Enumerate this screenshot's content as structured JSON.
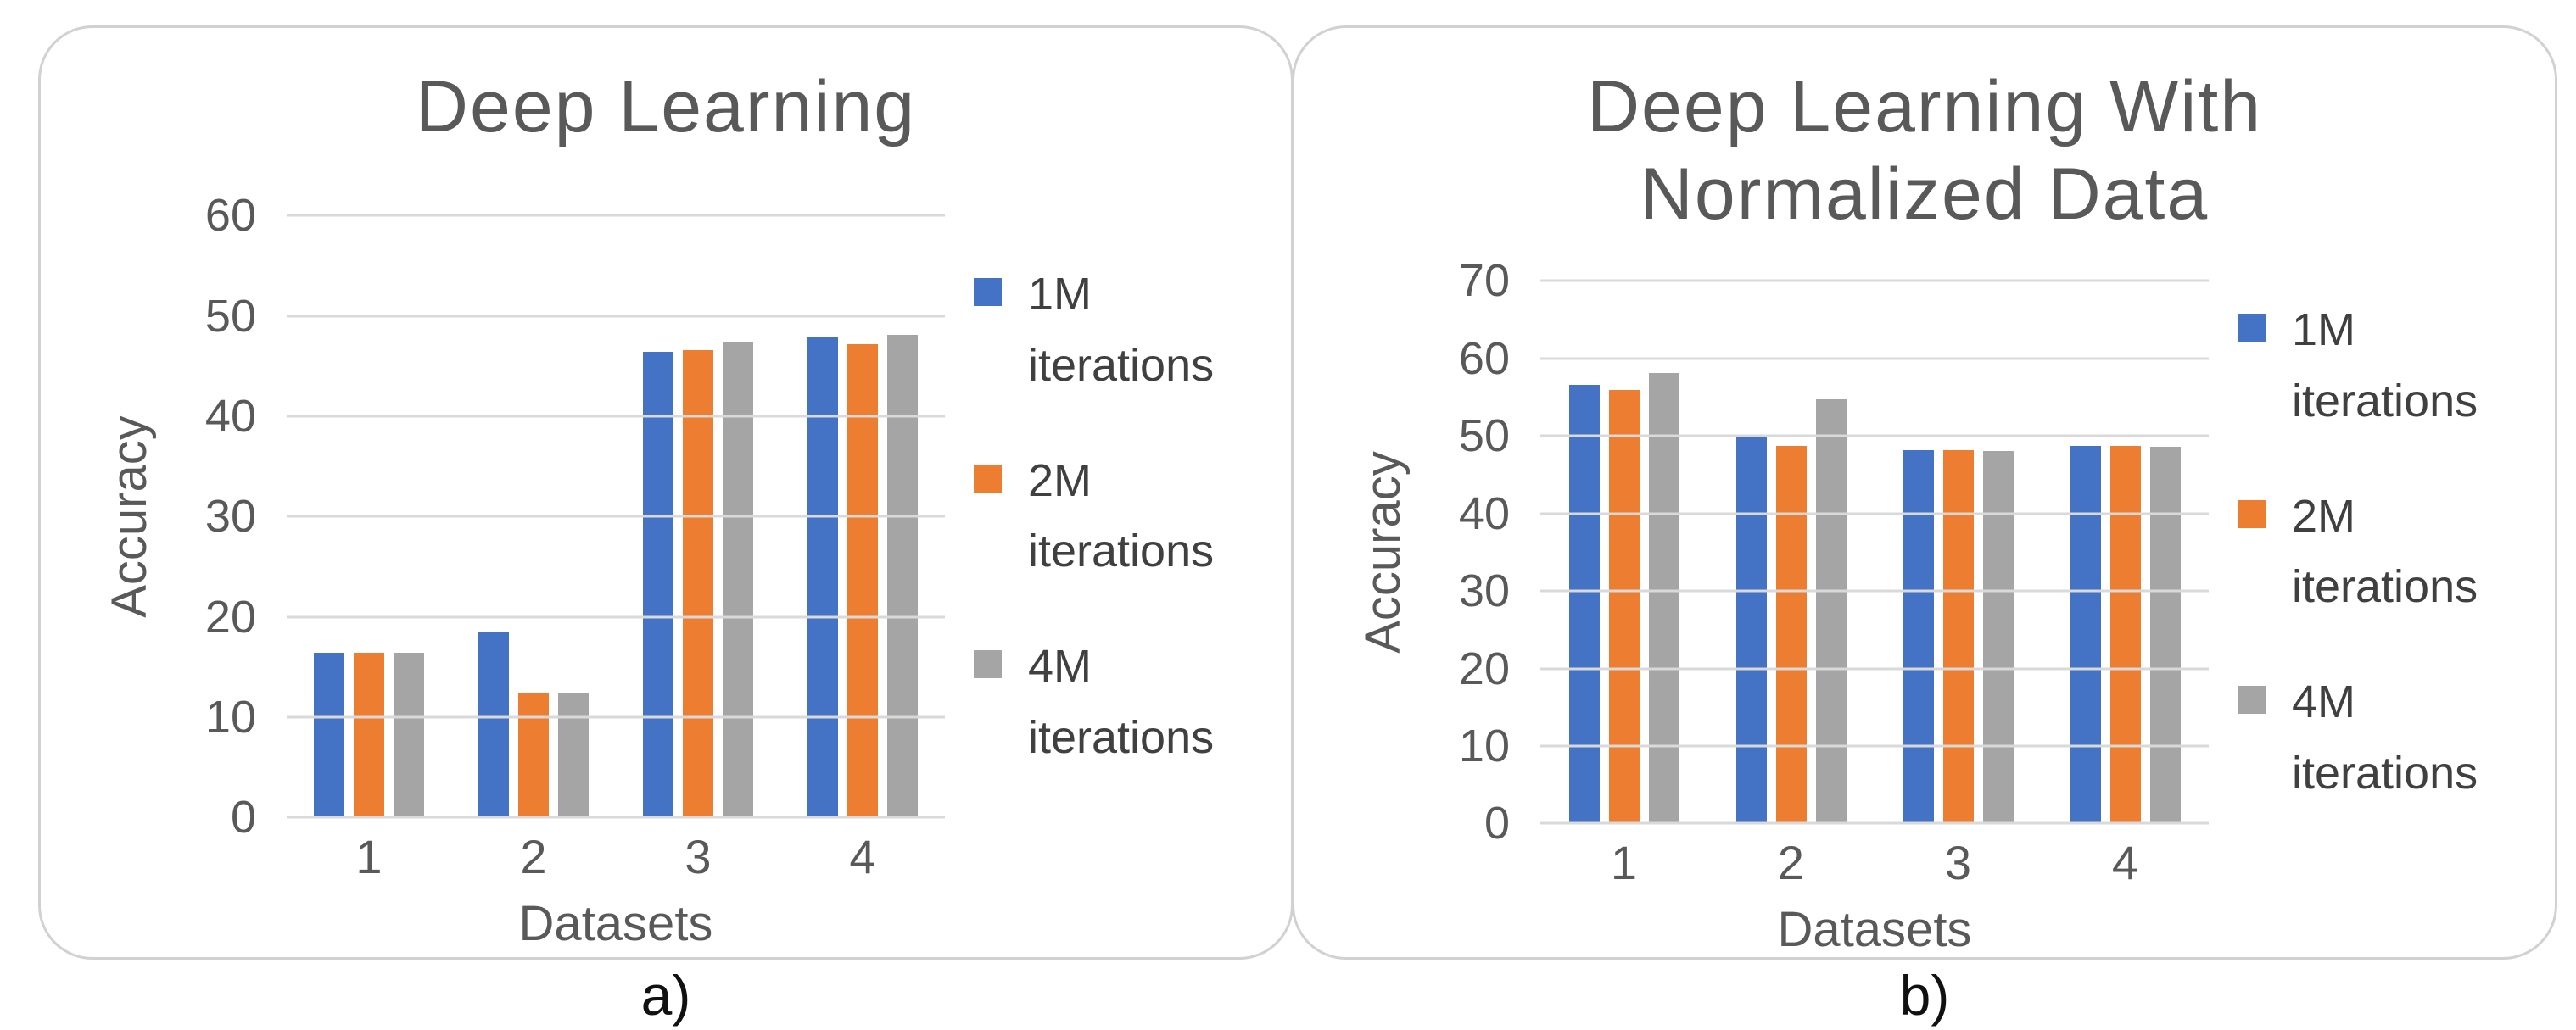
{
  "figure_type": "two-panel clustered bar chart figure",
  "captions": [
    "a)",
    "b)"
  ],
  "colors": {
    "series_blue": "#4472C4",
    "series_orange": "#ED7D31",
    "series_gray": "#A5A5A5",
    "title_text": "#595959",
    "axis_text": "#595959",
    "gridline": "#D9D9D9",
    "panel_border": "#D2D0D0",
    "caption_text": "#111111",
    "background": "#FFFFFF"
  },
  "chart_data": [
    {
      "type": "bar",
      "title": "Deep Learning",
      "title_lines": [
        "Deep Learning"
      ],
      "xlabel": "Datasets",
      "ylabel": "Accuracy",
      "categories": [
        "1",
        "2",
        "3",
        "4"
      ],
      "series": [
        {
          "name": "1M iterations",
          "name_lines": [
            "1M",
            "iterations"
          ],
          "color": "#4472C4",
          "values": [
            16.4,
            18.5,
            46.4,
            47.9
          ]
        },
        {
          "name": "2M iterations",
          "name_lines": [
            "2M",
            "iterations"
          ],
          "color": "#ED7D31",
          "values": [
            16.4,
            12.4,
            46.6,
            47.2
          ]
        },
        {
          "name": "4M iterations",
          "name_lines": [
            "4M",
            "iterations"
          ],
          "color": "#A5A5A5",
          "values": [
            16.4,
            12.4,
            47.4,
            48.1
          ]
        }
      ],
      "ylim": [
        0,
        60
      ],
      "yticks": [
        0,
        10,
        20,
        30,
        40,
        50,
        60
      ],
      "grid": true,
      "legend_position": "right"
    },
    {
      "type": "bar",
      "title": "Deep Learning With Normalized Data",
      "title_lines": [
        "Deep Learning With",
        "Normalized Data"
      ],
      "xlabel": "Datasets",
      "ylabel": "Accuracy",
      "categories": [
        "1",
        "2",
        "3",
        "4"
      ],
      "series": [
        {
          "name": "1M iterations",
          "name_lines": [
            "1M",
            "iterations"
          ],
          "color": "#4472C4",
          "values": [
            56.6,
            50.0,
            48.2,
            48.7
          ]
        },
        {
          "name": "2M iterations",
          "name_lines": [
            "2M",
            "iterations"
          ],
          "color": "#ED7D31",
          "values": [
            55.9,
            48.7,
            48.2,
            48.7
          ]
        },
        {
          "name": "4M iterations",
          "name_lines": [
            "4M",
            "iterations"
          ],
          "color": "#A5A5A5",
          "values": [
            58.1,
            54.7,
            48.1,
            48.6
          ]
        }
      ],
      "ylim": [
        0,
        70
      ],
      "yticks": [
        0,
        10,
        20,
        30,
        40,
        50,
        60,
        70
      ],
      "grid": true,
      "legend_position": "right"
    }
  ]
}
